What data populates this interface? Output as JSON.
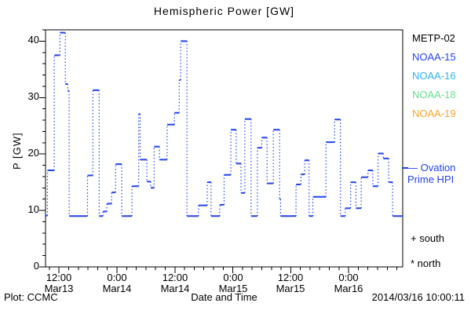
{
  "title": "Hemispheric Power [GW]",
  "axes": {
    "y": {
      "label": "P [GW]",
      "min": 0,
      "max": 42,
      "major_ticks": [
        0,
        10,
        20,
        30,
        40
      ],
      "minor_step": 2
    },
    "x": {
      "label": "Date and Time",
      "min_hours": 9.2,
      "max_hours": 83.2,
      "minor_step_hours": 2,
      "major_ticks": [
        {
          "hours": 12,
          "time": "12:00",
          "date": "Mar13"
        },
        {
          "hours": 24,
          "time": "0:00",
          "date": "Mar14"
        },
        {
          "hours": 36,
          "time": "12:00",
          "date": "Mar14"
        },
        {
          "hours": 48,
          "time": "0:00",
          "date": "Mar15"
        },
        {
          "hours": 60,
          "time": "12:00",
          "date": "Mar15"
        },
        {
          "hours": 72,
          "time": "0:00",
          "date": "Mar16"
        }
      ]
    }
  },
  "legend": {
    "satellites": [
      {
        "label": "METP-02",
        "color": "#000000"
      },
      {
        "label": "NOAA-15",
        "color": "#2244ee"
      },
      {
        "label": "NOAA-16",
        "color": "#2ab4f0"
      },
      {
        "label": "NOAA-18",
        "color": "#66e08e"
      },
      {
        "label": "NOAA-19",
        "color": "#ffa22b"
      }
    ],
    "ovation": {
      "line1": "— Ovation",
      "line2": "Prime HPI",
      "color": "#2244ee"
    },
    "markers": [
      {
        "text": "+ south"
      },
      {
        "text": "* north"
      }
    ]
  },
  "footer": {
    "left": "Plot: CCMC",
    "right": "2014/03/16 10:00:11"
  },
  "chart_data": {
    "type": "line",
    "subtype": "step",
    "series_name": "Ovation Prime HPI",
    "line_color": "#2244ee",
    "frame_color": "#000000",
    "units": {
      "x": "hours since 2014-03-13 00:00 UT",
      "y": "GW"
    },
    "x_range_hours": [
      9.2,
      83.2
    ],
    "y_range": [
      0,
      42
    ],
    "grid": false,
    "legend_position": "right",
    "steps": [
      [
        9.2,
        9.1
      ],
      [
        9.6,
        17.1
      ],
      [
        11.0,
        37.5
      ],
      [
        12.2,
        41.5
      ],
      [
        13.3,
        32.4
      ],
      [
        13.8,
        31.2
      ],
      [
        14.1,
        9.0
      ],
      [
        17.9,
        16.2
      ],
      [
        19.0,
        31.3
      ],
      [
        20.3,
        9.0
      ],
      [
        21.1,
        9.8
      ],
      [
        21.9,
        11.2
      ],
      [
        22.9,
        13.2
      ],
      [
        23.7,
        18.2
      ],
      [
        25.0,
        9.0
      ],
      [
        27.1,
        14.3
      ],
      [
        28.5,
        27.1
      ],
      [
        28.8,
        19.0
      ],
      [
        30.2,
        15.1
      ],
      [
        31.0,
        14.0
      ],
      [
        31.7,
        21.3
      ],
      [
        32.8,
        19.0
      ],
      [
        34.4,
        25.2
      ],
      [
        35.9,
        27.3
      ],
      [
        36.9,
        33.1
      ],
      [
        37.2,
        40.0
      ],
      [
        38.5,
        9.0
      ],
      [
        40.9,
        10.9
      ],
      [
        42.7,
        15.0
      ],
      [
        43.5,
        9.0
      ],
      [
        45.3,
        11.0
      ],
      [
        46.2,
        16.3
      ],
      [
        47.6,
        24.3
      ],
      [
        48.7,
        18.3
      ],
      [
        49.7,
        13.1
      ],
      [
        50.5,
        26.2
      ],
      [
        51.8,
        9.0
      ],
      [
        53.1,
        21.1
      ],
      [
        54.0,
        22.9
      ],
      [
        55.1,
        14.8
      ],
      [
        56.4,
        24.3
      ],
      [
        57.7,
        12.0
      ],
      [
        57.9,
        9.0
      ],
      [
        61.1,
        14.6
      ],
      [
        62.1,
        16.4
      ],
      [
        62.9,
        18.9
      ],
      [
        63.8,
        9.0
      ],
      [
        64.6,
        12.4
      ],
      [
        67.3,
        22.1
      ],
      [
        69.1,
        26.1
      ],
      [
        70.3,
        9.0
      ],
      [
        71.3,
        10.4
      ],
      [
        72.4,
        15.0
      ],
      [
        73.5,
        10.4
      ],
      [
        74.6,
        15.9
      ],
      [
        76.0,
        17.1
      ],
      [
        77.0,
        14.3
      ],
      [
        78.1,
        20.1
      ],
      [
        79.2,
        19.2
      ],
      [
        80.3,
        15.0
      ],
      [
        81.1,
        9.0
      ]
    ],
    "end_hours": 83.2
  }
}
